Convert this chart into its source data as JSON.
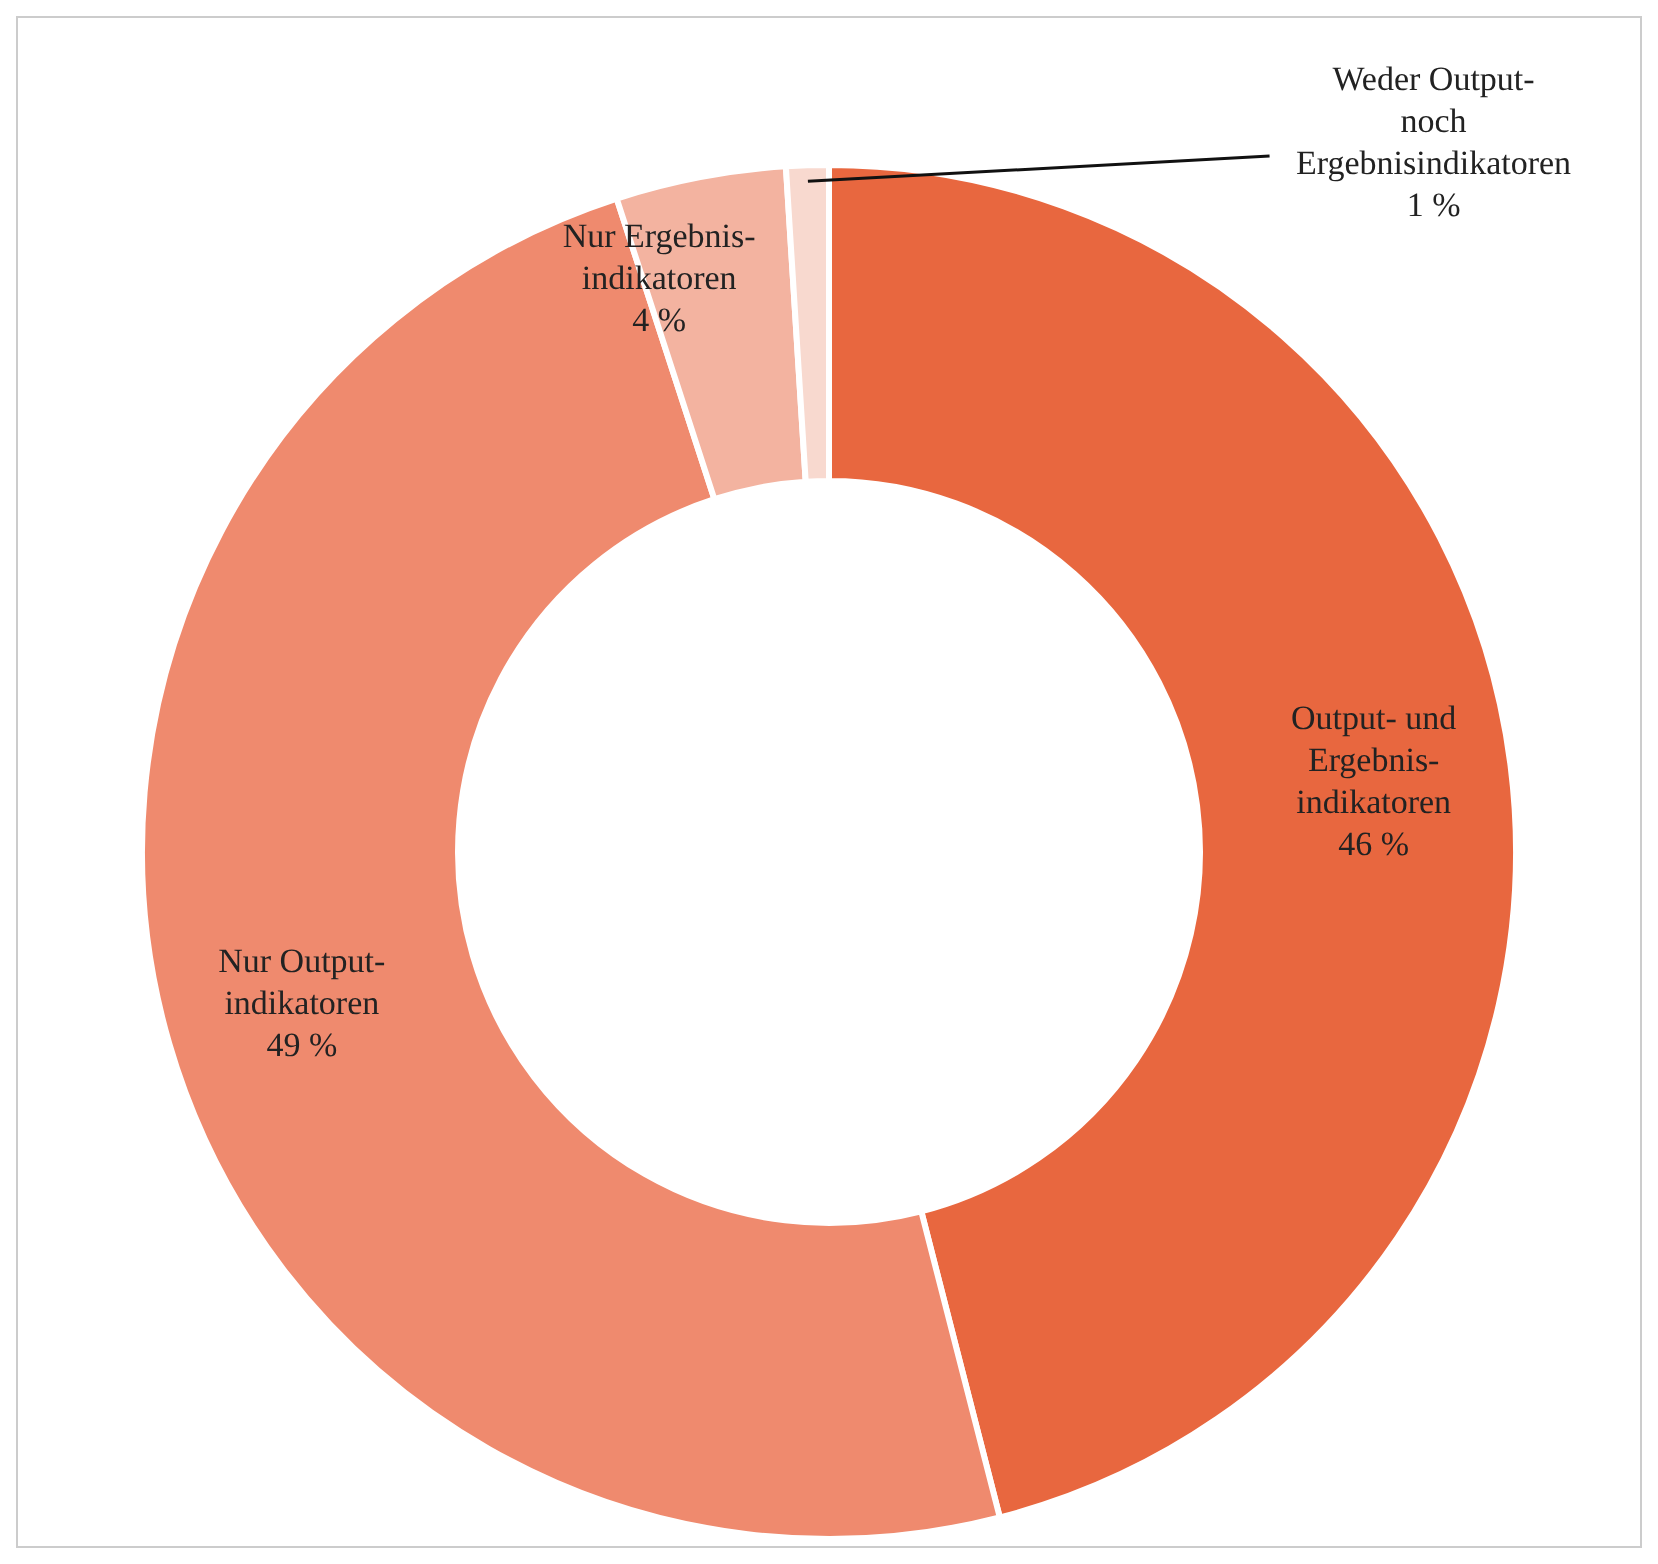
{
  "chart_data": {
    "type": "donut",
    "categories": [
      "Output- und\nErgebnis-\nindikatoren",
      "Nur Output-\nindikatoren",
      "Nur Ergebnis-\nindikatoren",
      "Weder Output-\nnoch\nErgebnisindikatoren"
    ],
    "values": [
      46,
      49,
      4,
      1
    ],
    "value_labels": [
      "46 %",
      "49 %",
      "4 %",
      "1 %"
    ],
    "colors": [
      "#e8673f",
      "#ef8a6e",
      "#f3b3a0",
      "#f8d9cf"
    ],
    "legend": false
  }
}
